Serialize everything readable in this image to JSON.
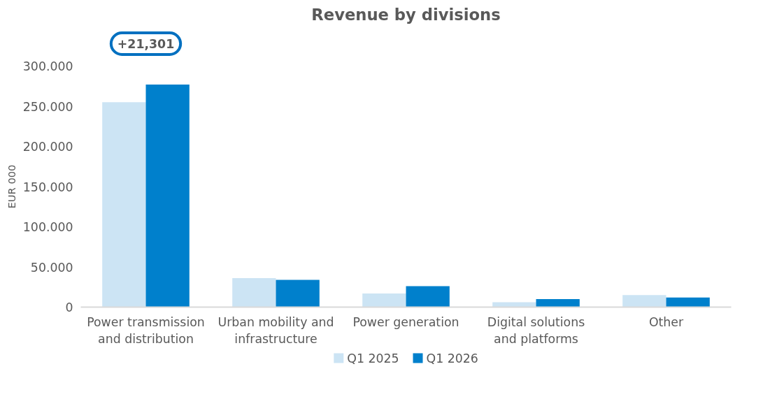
{
  "chart_data": {
    "type": "bar",
    "title": "Revenue by divisions",
    "ylabel": "EUR 000",
    "categories": [
      "Power transmission and distribution",
      "Urban mobility and infrastructure",
      "Power generation",
      "Digital solutions and platforms",
      "Other"
    ],
    "series": [
      {
        "name": "Q1 2025",
        "color": "#cce4f4",
        "values": [
          255000,
          36000,
          17000,
          6000,
          15000
        ]
      },
      {
        "name": "Q1 2026",
        "color": "#0080cc",
        "values": [
          277000,
          34000,
          26000,
          10000,
          12000
        ]
      }
    ],
    "ylim": [
      0,
      300000
    ],
    "yticks": [
      {
        "value": 0,
        "label": "0"
      },
      {
        "value": 50000,
        "label": "50.000"
      },
      {
        "value": 100000,
        "label": "100.000"
      },
      {
        "value": 150000,
        "label": "150.000"
      },
      {
        "value": 200000,
        "label": "200.000"
      },
      {
        "value": 250000,
        "label": "250.000"
      },
      {
        "value": 300000,
        "label": "300.000"
      }
    ],
    "annotations": [
      "+21,301"
    ],
    "grid": false,
    "legend": "bottom"
  }
}
